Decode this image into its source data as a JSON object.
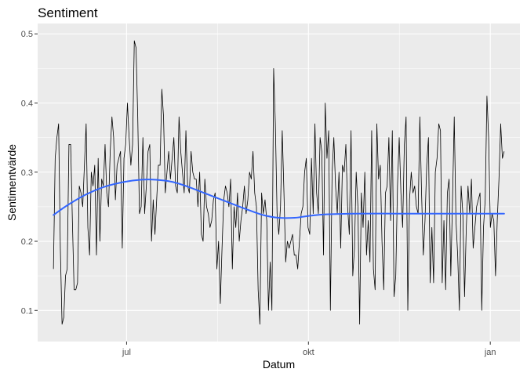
{
  "chart_data": {
    "type": "line",
    "title": "Sentiment",
    "xlabel": "Datum",
    "ylabel": "Sentimentvärde",
    "x_start": "2021-05-25",
    "x_end": "2022-01-08",
    "xlim": [
      "2021-05-17",
      "2022-01-16"
    ],
    "ylim": [
      0.055,
      0.515
    ],
    "x_ticks": [
      {
        "date": "2021-07-01",
        "label": "jul"
      },
      {
        "date": "2021-10-01",
        "label": "okt"
      },
      {
        "date": "2022-01-01",
        "label": "jan"
      }
    ],
    "y_ticks": [
      0.1,
      0.2,
      0.3,
      0.4,
      0.5
    ],
    "y_tick_labels": [
      "0.1",
      "0.2",
      "0.3",
      "0.4",
      "0.5"
    ],
    "grid": true,
    "panel_background": "#ebebeb",
    "grid_color": "#ffffff",
    "series": [
      {
        "color": "#000000",
        "values": [
          0.16,
          0.32,
          0.35,
          0.37,
          0.19,
          0.08,
          0.09,
          0.15,
          0.16,
          0.34,
          0.34,
          0.23,
          0.13,
          0.13,
          0.14,
          0.28,
          0.27,
          0.25,
          0.31,
          0.37,
          0.22,
          0.18,
          0.3,
          0.28,
          0.31,
          0.18,
          0.32,
          0.2,
          0.29,
          0.28,
          0.34,
          0.27,
          0.25,
          0.33,
          0.38,
          0.35,
          0.26,
          0.31,
          0.32,
          0.33,
          0.19,
          0.32,
          0.34,
          0.4,
          0.35,
          0.31,
          0.34,
          0.49,
          0.48,
          0.38,
          0.24,
          0.25,
          0.35,
          0.24,
          0.28,
          0.33,
          0.34,
          0.2,
          0.26,
          0.21,
          0.26,
          0.31,
          0.31,
          0.42,
          0.38,
          0.27,
          0.3,
          0.33,
          0.29,
          0.32,
          0.35,
          0.28,
          0.27,
          0.38,
          0.33,
          0.3,
          0.27,
          0.36,
          0.28,
          0.27,
          0.33,
          0.3,
          0.29,
          0.29,
          0.25,
          0.3,
          0.21,
          0.2,
          0.29,
          0.25,
          0.24,
          0.22,
          0.23,
          0.26,
          0.27,
          0.16,
          0.2,
          0.11,
          0.19,
          0.26,
          0.28,
          0.27,
          0.25,
          0.29,
          0.16,
          0.25,
          0.22,
          0.27,
          0.2,
          0.23,
          0.25,
          0.28,
          0.24,
          0.26,
          0.3,
          0.29,
          0.33,
          0.27,
          0.25,
          0.13,
          0.08,
          0.27,
          0.24,
          0.26,
          0.23,
          0.1,
          0.17,
          0.1,
          0.45,
          0.37,
          0.24,
          0.21,
          0.25,
          0.36,
          0.27,
          0.17,
          0.2,
          0.19,
          0.2,
          0.21,
          0.18,
          0.18,
          0.16,
          0.2,
          0.24,
          0.25,
          0.3,
          0.32,
          0.22,
          0.21,
          0.32,
          0.24,
          0.37,
          0.27,
          0.24,
          0.35,
          0.33,
          0.18,
          0.4,
          0.32,
          0.36,
          0.1,
          0.3,
          0.35,
          0.28,
          0.24,
          0.3,
          0.19,
          0.31,
          0.3,
          0.34,
          0.25,
          0.21,
          0.36,
          0.15,
          0.19,
          0.3,
          0.25,
          0.08,
          0.27,
          0.22,
          0.3,
          0.18,
          0.23,
          0.17,
          0.36,
          0.16,
          0.13,
          0.37,
          0.29,
          0.31,
          0.2,
          0.13,
          0.27,
          0.28,
          0.35,
          0.23,
          0.36,
          0.12,
          0.15,
          0.28,
          0.35,
          0.27,
          0.22,
          0.34,
          0.38,
          0.1,
          0.26,
          0.3,
          0.27,
          0.28,
          0.25,
          0.24,
          0.38,
          0.27,
          0.18,
          0.23,
          0.31,
          0.35,
          0.14,
          0.22,
          0.14,
          0.3,
          0.32,
          0.37,
          0.36,
          0.14,
          0.23,
          0.13,
          0.27,
          0.29,
          0.15,
          0.26,
          0.38,
          0.23,
          0.18,
          0.1,
          0.28,
          0.24,
          0.12,
          0.22,
          0.28,
          0.24,
          0.29,
          0.19,
          0.22,
          0.25,
          0.26,
          0.27,
          0.1,
          0.22,
          0.26,
          0.41,
          0.35,
          0.22,
          0.24,
          0.23,
          0.15,
          0.23,
          0.29,
          0.37,
          0.32,
          0.33
        ]
      },
      {
        "color": "#3366ff",
        "smooth": true,
        "points": [
          [
            "2021-05-25",
            0.238
          ],
          [
            "2021-06-01",
            0.252
          ],
          [
            "2021-06-10",
            0.267
          ],
          [
            "2021-06-20",
            0.279
          ],
          [
            "2021-06-30",
            0.286
          ],
          [
            "2021-07-08",
            0.289
          ],
          [
            "2021-07-16",
            0.289
          ],
          [
            "2021-07-24",
            0.286
          ],
          [
            "2021-08-01",
            0.279
          ],
          [
            "2021-08-10",
            0.269
          ],
          [
            "2021-08-20",
            0.258
          ],
          [
            "2021-08-30",
            0.247
          ],
          [
            "2021-09-08",
            0.238
          ],
          [
            "2021-09-16",
            0.234
          ],
          [
            "2021-09-24",
            0.234
          ],
          [
            "2021-10-02",
            0.237
          ],
          [
            "2021-10-10",
            0.239
          ],
          [
            "2021-10-25",
            0.24
          ],
          [
            "2021-11-15",
            0.24
          ],
          [
            "2021-12-05",
            0.24
          ],
          [
            "2021-12-25",
            0.24
          ],
          [
            "2022-01-08",
            0.24
          ]
        ]
      }
    ]
  }
}
